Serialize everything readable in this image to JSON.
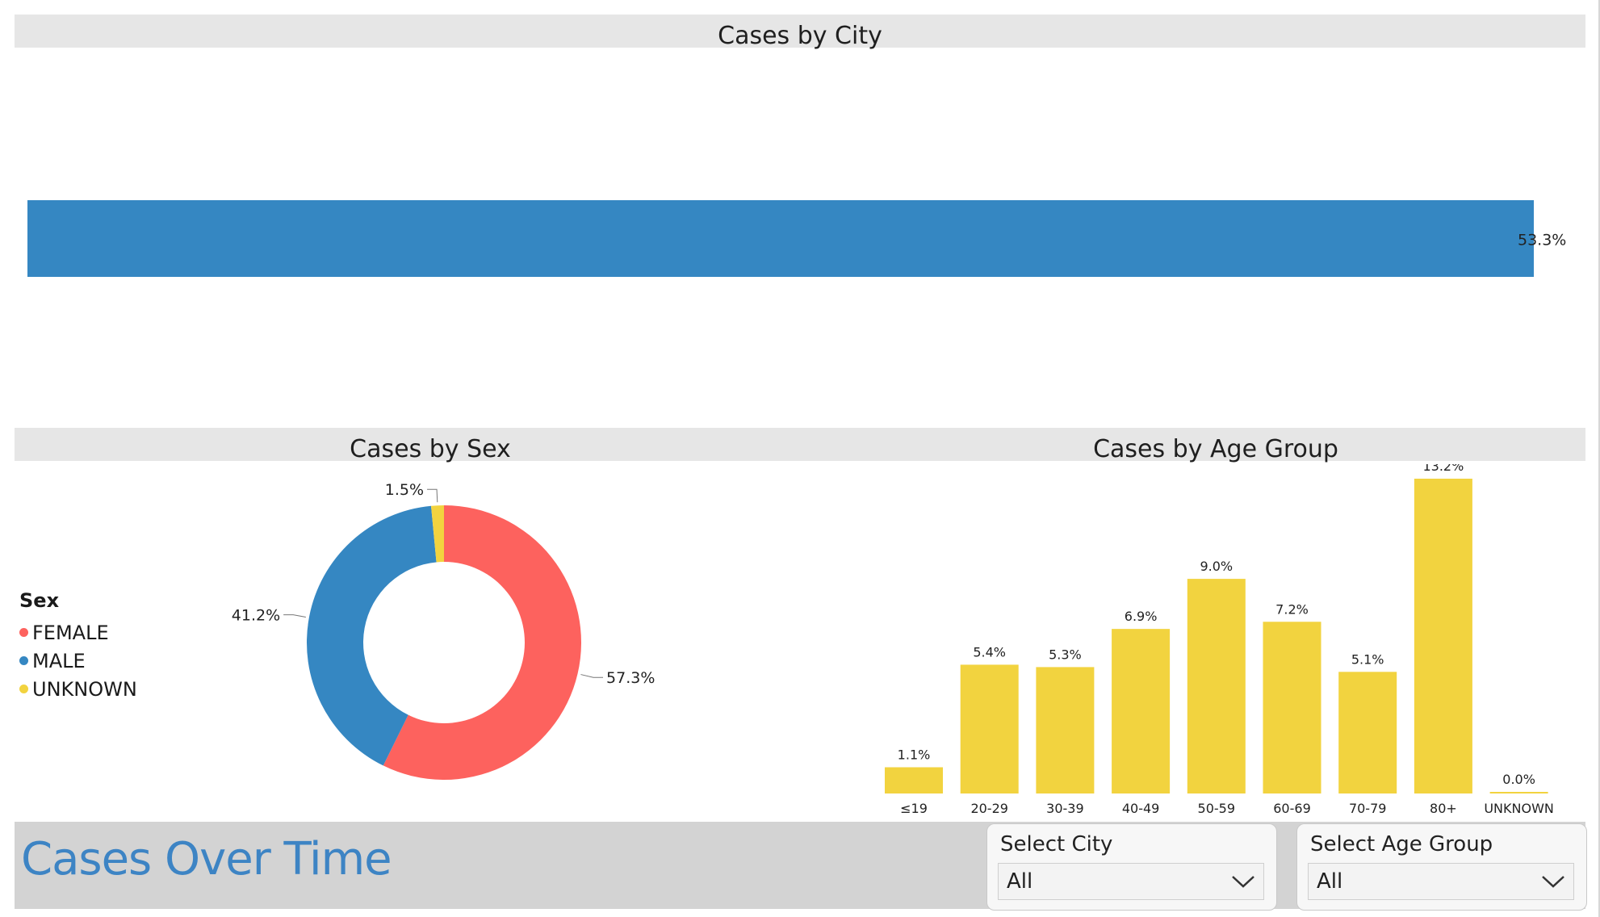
{
  "colors": {
    "female": "#fd625e",
    "male": "#3587c2",
    "unknown": "#f2d33f",
    "age_bar": "#f2d33f",
    "city_bar": "#3587c2",
    "accent_title": "#3d84c4"
  },
  "headers": {
    "city": "Cases by City",
    "sex": "Cases by Sex",
    "age": "Cases by Age Group"
  },
  "legend": {
    "title": "Sex",
    "items": [
      {
        "label": "FEMALE",
        "color": "#fd625e"
      },
      {
        "label": "MALE",
        "color": "#3587c2"
      },
      {
        "label": "UNKNOWN",
        "color": "#f2d33f"
      }
    ]
  },
  "time_section": {
    "title": "Cases Over Time"
  },
  "slicers": {
    "city": {
      "label": "Select City",
      "value": "All"
    },
    "age": {
      "label": "Select Age Group",
      "value": "All"
    }
  },
  "chart_data": [
    {
      "type": "bar",
      "orientation": "horizontal",
      "title": "Cases by City",
      "categories": [
        ""
      ],
      "values": [
        53.3
      ],
      "data_labels": [
        "53.3%"
      ],
      "xlim": [
        0,
        53.3
      ]
    },
    {
      "type": "pie",
      "variant": "donut",
      "title": "Cases by Sex",
      "categories": [
        "FEMALE",
        "MALE",
        "UNKNOWN"
      ],
      "values": [
        57.3,
        41.2,
        1.5
      ],
      "data_labels": [
        "57.3%",
        "41.2%",
        "1.5%"
      ],
      "legend_title": "Sex",
      "legend_position": "left"
    },
    {
      "type": "bar",
      "title": "Cases by Age Group",
      "categories": [
        "≤19",
        "20-29",
        "30-39",
        "40-49",
        "50-59",
        "60-69",
        "70-79",
        "80+",
        "UNKNOWN"
      ],
      "values": [
        1.1,
        5.4,
        5.3,
        6.9,
        9.0,
        7.2,
        5.1,
        13.2,
        0.0
      ],
      "data_labels": [
        "1.1%",
        "5.4%",
        "5.3%",
        "6.9%",
        "9.0%",
        "7.2%",
        "5.1%",
        "13.2%",
        "0.0%"
      ],
      "ylim": [
        0,
        13.2
      ]
    }
  ]
}
